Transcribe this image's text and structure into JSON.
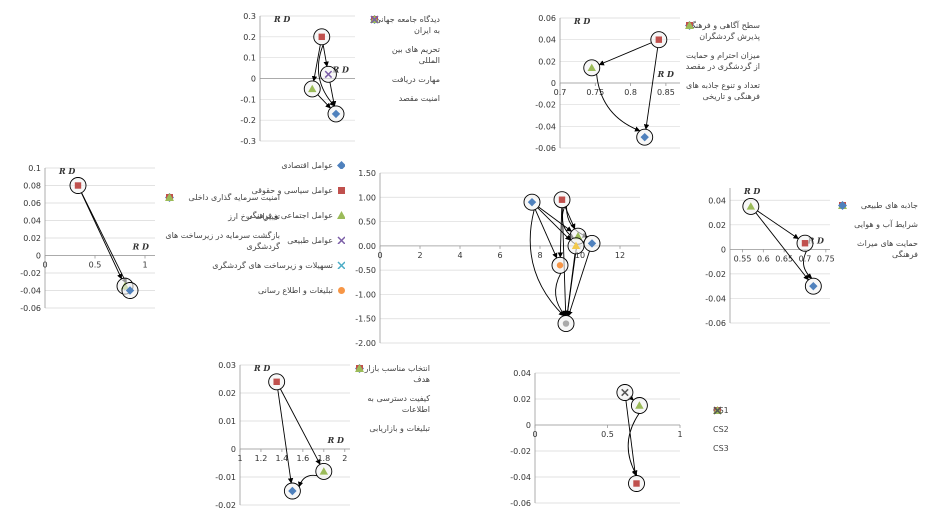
{
  "chart_data": [
    {
      "id": "top-center",
      "type": "scatter",
      "axis_title": "R D",
      "yticks": [
        "0.3",
        "0.2",
        "0.1",
        "0",
        "-0.1",
        "-0.2",
        "-0.3"
      ],
      "ylim": [
        -0.3,
        0.3
      ],
      "xlim": [
        0,
        1
      ],
      "points": [
        {
          "x": 0.65,
          "y": 0.2,
          "marker": "square",
          "color": "#c0504d"
        },
        {
          "x": 0.72,
          "y": 0.02,
          "marker": "x",
          "color": "#7b5ea7"
        },
        {
          "x": 0.55,
          "y": -0.05,
          "marker": "triangle",
          "color": "#9bbb59"
        },
        {
          "x": 0.8,
          "y": -0.17,
          "marker": "diamond",
          "color": "#4f81bd"
        }
      ],
      "arrows": [
        [
          0,
          2
        ],
        [
          0,
          1
        ],
        [
          0,
          3
        ],
        [
          1,
          3
        ],
        [
          2,
          3
        ]
      ],
      "legend": [
        {
          "label": "دیدگاه جامعه جهانی به ایران",
          "marker": "diamond",
          "color": "#4f81bd"
        },
        {
          "label": "تحریم های بین المللی",
          "marker": "square",
          "color": "#c0504d"
        },
        {
          "label": "مهارت دریافت",
          "marker": "triangle",
          "color": "#9bbb59"
        },
        {
          "label": "امنیت مقصد",
          "marker": "x",
          "color": "#7b5ea7"
        }
      ]
    },
    {
      "id": "top-right",
      "type": "scatter",
      "axis_title": "R D",
      "yticks": [
        "0.06",
        "0.04",
        "0.02",
        "0",
        "-0.02",
        "-0.04",
        "-0.06"
      ],
      "xticks": [
        "0.7",
        "0.75",
        "0.8",
        "0.85"
      ],
      "xlim": [
        0.7,
        0.87
      ],
      "ylim": [
        -0.06,
        0.06
      ],
      "points": [
        {
          "x": 0.84,
          "y": 0.04,
          "marker": "square",
          "color": "#c0504d"
        },
        {
          "x": 0.745,
          "y": 0.014,
          "marker": "triangle",
          "color": "#9bbb59"
        },
        {
          "x": 0.82,
          "y": -0.05,
          "marker": "diamond",
          "color": "#4f81bd"
        }
      ],
      "arrows": [
        [
          0,
          1
        ],
        [
          0,
          2
        ],
        [
          1,
          2
        ]
      ],
      "legend": [
        {
          "label": "سطح آگاهی و فرهنگ پذیرش گردشگران",
          "marker": "diamond",
          "color": "#4f81bd"
        },
        {
          "label": "میزان احترام و حمایت از گردشگری در مقصد",
          "marker": "square",
          "color": "#c0504d"
        },
        {
          "label": "تعداد و تنوع جاذبه های فرهنگی و تاریخی",
          "marker": "triangle",
          "color": "#9bbb59"
        }
      ]
    },
    {
      "id": "center",
      "type": "scatter",
      "yticks": [
        "1.50",
        "1.00",
        "0.50",
        "0.00",
        "-0.50",
        "-1.00",
        "-1.50",
        "-2.00"
      ],
      "xticks": [
        "0",
        "2",
        "4",
        "6",
        "8",
        "10",
        "12"
      ],
      "xlim": [
        0,
        13
      ],
      "ylim": [
        -2.0,
        1.5
      ],
      "points": [
        {
          "x": 7.6,
          "y": 0.9,
          "marker": "diamond",
          "color": "#4f81bd"
        },
        {
          "x": 9.1,
          "y": 0.95,
          "marker": "square",
          "color": "#c0504d"
        },
        {
          "x": 9.9,
          "y": 0.2,
          "marker": "triangle",
          "color": "#9bbb59"
        },
        {
          "x": 10.6,
          "y": 0.05,
          "marker": "diamond",
          "color": "#4f81bd"
        },
        {
          "x": 9.8,
          "y": 0.0,
          "marker": "triangle",
          "color": "#f2c94c"
        },
        {
          "x": 9.0,
          "y": -0.4,
          "marker": "circle",
          "color": "#f79646"
        },
        {
          "x": 9.3,
          "y": -1.6,
          "marker": "circle",
          "color": "#aaaaaa"
        }
      ],
      "arrows": [
        [
          0,
          2
        ],
        [
          0,
          5
        ],
        [
          0,
          6
        ],
        [
          0,
          4
        ],
        [
          1,
          2
        ],
        [
          1,
          3
        ],
        [
          1,
          5
        ],
        [
          1,
          6
        ],
        [
          1,
          4
        ],
        [
          2,
          6
        ],
        [
          4,
          6
        ],
        [
          5,
          6
        ],
        [
          3,
          6
        ]
      ],
      "legend": [
        {
          "label": "عوامل اقتصادی",
          "marker": "diamond",
          "color": "#4f81bd"
        },
        {
          "label": "عوامل سیاسی و حقوقی",
          "marker": "square",
          "color": "#c0504d"
        },
        {
          "label": "عوامل اجتماعی و فرهنگی",
          "marker": "triangle",
          "color": "#9bbb59"
        },
        {
          "label": "عوامل طبیعی",
          "marker": "x",
          "color": "#7b5ea7"
        },
        {
          "label": "تسهیلات و زیرساخت های گردشگری",
          "marker": "x",
          "color": "#4bacc6"
        },
        {
          "label": "تبلیغات و اطلاع رسانی",
          "marker": "circle",
          "color": "#f79646"
        }
      ]
    },
    {
      "id": "left",
      "type": "scatter",
      "axis_title": "R D",
      "yticks": [
        "0.1",
        "0.08",
        "0.06",
        "0.04",
        "0.02",
        "0",
        "-0.02",
        "-0.04",
        "-0.06"
      ],
      "xticks": [
        "0",
        "0.5",
        "1"
      ],
      "xlim": [
        0,
        1.1
      ],
      "ylim": [
        -0.06,
        0.1
      ],
      "points": [
        {
          "x": 0.33,
          "y": 0.08,
          "marker": "square",
          "color": "#c0504d"
        },
        {
          "x": 0.8,
          "y": -0.035,
          "marker": "triangle",
          "color": "#9bbb59"
        },
        {
          "x": 0.85,
          "y": -0.04,
          "marker": "diamond",
          "color": "#4f81bd"
        }
      ],
      "arrows": [
        [
          0,
          1
        ],
        [
          0,
          2
        ],
        [
          1,
          2
        ]
      ],
      "legend": [
        {
          "label": "امنیت سرمایه گذاری داخلی",
          "marker": "diamond",
          "color": "#4f81bd"
        },
        {
          "label": "تغییرات نرخ ارز",
          "marker": "square",
          "color": "#c0504d"
        },
        {
          "label": "بازگشت سرمایه در زیرساخت های گردشگری",
          "marker": "triangle",
          "color": "#9bbb59"
        }
      ]
    },
    {
      "id": "right",
      "type": "scatter",
      "axis_title": "R D",
      "yticks": [
        "0.04",
        "0.02",
        "0",
        "-0.02",
        "-0.04",
        "-0.06"
      ],
      "xticks": [
        "0.55",
        "0.6",
        "0.65",
        "0.7",
        "0.75"
      ],
      "xlim": [
        0.52,
        0.76
      ],
      "ylim": [
        -0.06,
        0.05
      ],
      "points": [
        {
          "x": 0.57,
          "y": 0.035,
          "marker": "triangle",
          "color": "#9bbb59"
        },
        {
          "x": 0.7,
          "y": 0.005,
          "marker": "square",
          "color": "#c0504d"
        },
        {
          "x": 0.72,
          "y": -0.03,
          "marker": "diamond",
          "color": "#4f81bd"
        }
      ],
      "arrows": [
        [
          0,
          1
        ],
        [
          0,
          2
        ],
        [
          1,
          2
        ]
      ],
      "legend": [
        {
          "label": "جاذبه های طبیعی",
          "marker": "square",
          "color": "#c0504d"
        },
        {
          "label": "شرایط آب و هوایی",
          "marker": "triangle",
          "color": "#9bbb59"
        },
        {
          "label": "حمایت های میراث فرهنگی",
          "marker": "diamond",
          "color": "#4f81bd"
        }
      ]
    },
    {
      "id": "bottom-left",
      "type": "scatter",
      "axis_title": "R D",
      "yticks": [
        "0.03",
        "0.02",
        "0.01",
        "0",
        "-0.01",
        "-0.02"
      ],
      "xticks": [
        "1",
        "1.2",
        "1.4",
        "1.6",
        "1.8",
        "2"
      ],
      "xlim": [
        1,
        2.05
      ],
      "ylim": [
        -0.02,
        0.03
      ],
      "points": [
        {
          "x": 1.35,
          "y": 0.024,
          "marker": "square",
          "color": "#c0504d"
        },
        {
          "x": 1.8,
          "y": -0.008,
          "marker": "triangle",
          "color": "#9bbb59"
        },
        {
          "x": 1.5,
          "y": -0.015,
          "marker": "diamond",
          "color": "#4f81bd"
        }
      ],
      "arrows": [
        [
          0,
          1
        ],
        [
          0,
          2
        ],
        [
          1,
          2
        ]
      ],
      "legend": [
        {
          "label": "انتخاب مناسب بازار هدف",
          "marker": "diamond",
          "color": "#4f81bd"
        },
        {
          "label": "کیفیت دسترسی به اطلاعات",
          "marker": "square",
          "color": "#c0504d"
        },
        {
          "label": "تبلیغات و بازاریابی",
          "marker": "triangle",
          "color": "#9bbb59"
        }
      ]
    },
    {
      "id": "bottom-right",
      "type": "scatter",
      "yticks": [
        "0.04",
        "0.02",
        "0",
        "-0.02",
        "-0.04",
        "-0.06"
      ],
      "xticks": [
        "0",
        "0.5",
        "1"
      ],
      "xlim": [
        0,
        1
      ],
      "ylim": [
        -0.06,
        0.04
      ],
      "points": [
        {
          "x": 0.62,
          "y": 0.025,
          "marker": "x",
          "color": "#555555"
        },
        {
          "x": 0.72,
          "y": 0.015,
          "marker": "triangle",
          "color": "#9bbb59"
        },
        {
          "x": 0.7,
          "y": -0.045,
          "marker": "square",
          "color": "#c0504d"
        }
      ],
      "arrows": [
        [
          0,
          1
        ],
        [
          0,
          2
        ],
        [
          1,
          2
        ]
      ],
      "legend": [
        {
          "label": "CS1",
          "marker": "square",
          "color": "#c0504d"
        },
        {
          "label": "CS2",
          "marker": "triangle",
          "color": "#9bbb59"
        },
        {
          "label": "CS3",
          "marker": "x",
          "color": "#555555"
        }
      ]
    }
  ]
}
